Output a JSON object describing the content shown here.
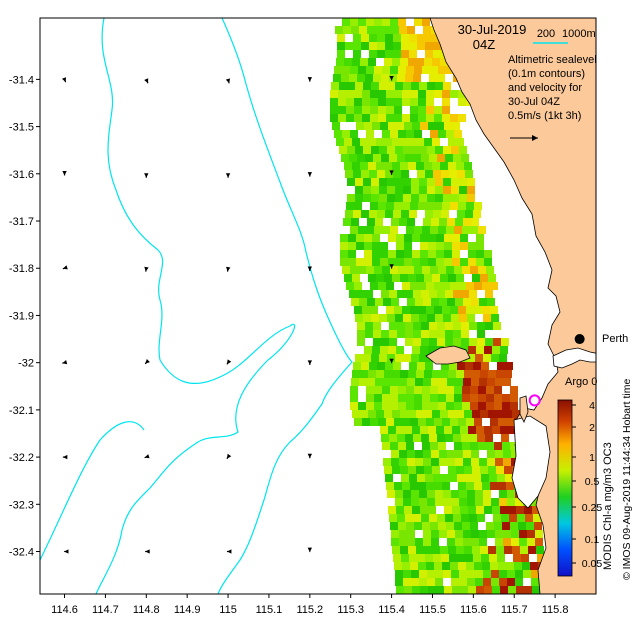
{
  "header": {
    "date": "30-Jul-2019",
    "time": "04Z"
  },
  "depth_legend": {
    "shallow": "200",
    "deep": "1000m",
    "color": "#00e5ee"
  },
  "annotation": {
    "lines": [
      "Altimetric sealevel",
      "(0.1m contours)",
      "and velocity for",
      "30-Jul 04Z"
    ],
    "scale_label": "0.5m/s (1kt 3h)"
  },
  "places": {
    "city": "Perth",
    "float": "Argo 0"
  },
  "colorbar": {
    "labels": [
      "4",
      "2",
      "1",
      "0.5",
      "0.25",
      "0.1",
      "0.05"
    ],
    "title": "MODIS Chl-a mg/m3 OC3"
  },
  "credits": {
    "side_text": "© IMOS 09-Aug-2019 11:44:34 Hobart time",
    "city_overlap_text": "Hobart time"
  },
  "colors": {
    "land": "#fbc99a",
    "coast": "#000000",
    "isobath": "#00e5ee",
    "argo": "#ff00ff",
    "chl_low": "#22cc00",
    "chl_high": "#aa1100"
  },
  "chart_data": {
    "type": "map",
    "x": {
      "label": "",
      "ticks": [
        114.6,
        114.7,
        114.8,
        114.9,
        115.0,
        115.1,
        115.2,
        115.3,
        115.4,
        115.5,
        115.6,
        115.7,
        115.8
      ],
      "range": [
        114.54,
        115.9
      ]
    },
    "y": {
      "label": "",
      "ticks": [
        -31.4,
        -31.5,
        -31.6,
        -31.7,
        -31.8,
        -31.9,
        -32.0,
        -32.1,
        -32.2,
        -32.3,
        -32.4
      ],
      "range": [
        -32.49,
        -31.27
      ]
    },
    "x_tick_labels": [
      "114.6",
      "114.7",
      "114.8",
      "114.9",
      "115",
      "115.1",
      "115.2",
      "115.3",
      "115.4",
      "115.5",
      "115.6",
      "115.7",
      "115.8"
    ],
    "y_tick_labels": [
      "-31.4",
      "-31.5",
      "-31.6",
      "-31.7",
      "-31.8",
      "-31.9",
      "-32",
      "-32.1",
      "-32.2",
      "-32.3",
      "-32.4"
    ],
    "velocity_vectors": [
      {
        "lon": 114.6,
        "lat": -31.4,
        "u": 0.02,
        "v": -0.05
      },
      {
        "lon": 114.8,
        "lat": -31.4,
        "u": 0.03,
        "v": -0.07
      },
      {
        "lon": 115.0,
        "lat": -31.4,
        "u": 0.02,
        "v": -0.07
      },
      {
        "lon": 115.2,
        "lat": -31.4,
        "u": 0.0,
        "v": -0.04
      },
      {
        "lon": 115.4,
        "lat": -31.4,
        "u": 0.0,
        "v": -0.02
      },
      {
        "lon": 114.6,
        "lat": -31.6,
        "u": 0.0,
        "v": -0.03
      },
      {
        "lon": 114.8,
        "lat": -31.6,
        "u": 0.0,
        "v": -0.07
      },
      {
        "lon": 115.0,
        "lat": -31.6,
        "u": 0.0,
        "v": -0.07
      },
      {
        "lon": 115.2,
        "lat": -31.6,
        "u": 0.0,
        "v": -0.05
      },
      {
        "lon": 115.4,
        "lat": -31.6,
        "u": 0.0,
        "v": -0.02
      },
      {
        "lon": 114.6,
        "lat": -31.8,
        "u": -0.03,
        "v": -0.01
      },
      {
        "lon": 114.8,
        "lat": -31.8,
        "u": -0.01,
        "v": -0.06
      },
      {
        "lon": 115.0,
        "lat": -31.8,
        "u": -0.01,
        "v": -0.06
      },
      {
        "lon": 115.2,
        "lat": -31.8,
        "u": 0.0,
        "v": -0.05
      },
      {
        "lon": 115.4,
        "lat": -31.8,
        "u": 0.0,
        "v": -0.01
      },
      {
        "lon": 114.6,
        "lat": -32.0,
        "u": -0.04,
        "v": -0.01
      },
      {
        "lon": 114.8,
        "lat": -32.0,
        "u": -0.02,
        "v": -0.02
      },
      {
        "lon": 115.0,
        "lat": -32.0,
        "u": -0.02,
        "v": -0.03
      },
      {
        "lon": 115.2,
        "lat": -32.0,
        "u": 0.0,
        "v": -0.04
      },
      {
        "lon": 115.4,
        "lat": -32.0,
        "u": 0.0,
        "v": -0.01
      },
      {
        "lon": 114.6,
        "lat": -32.2,
        "u": -0.03,
        "v": 0.0
      },
      {
        "lon": 114.8,
        "lat": -32.2,
        "u": -0.03,
        "v": -0.01
      },
      {
        "lon": 115.0,
        "lat": -32.2,
        "u": -0.02,
        "v": -0.03
      },
      {
        "lon": 115.2,
        "lat": -32.2,
        "u": 0.0,
        "v": -0.02
      },
      {
        "lon": 114.6,
        "lat": -32.4,
        "u": -0.01,
        "v": 0.0
      },
      {
        "lon": 114.8,
        "lat": -32.4,
        "u": -0.02,
        "v": 0.0
      },
      {
        "lon": 115.0,
        "lat": -32.4,
        "u": -0.02,
        "v": 0.0
      },
      {
        "lon": 115.2,
        "lat": -32.4,
        "u": 0.0,
        "v": -0.01
      }
    ],
    "points": [
      {
        "name": "Perth",
        "lon": 115.86,
        "lat": -31.95
      },
      {
        "name": "Argo 0",
        "lon": 115.75,
        "lat": -32.08
      }
    ],
    "colorbar_values": [
      0.05,
      0.1,
      0.25,
      0.5,
      1,
      2,
      4
    ],
    "grid": false
  }
}
